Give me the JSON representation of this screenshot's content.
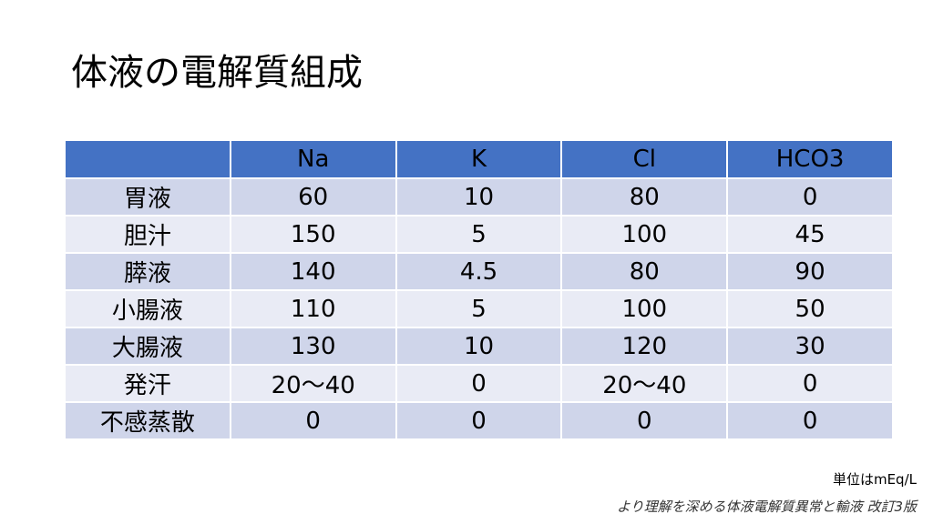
{
  "title": "体液の電解質組成",
  "table": {
    "headers": [
      "",
      "Na",
      "K",
      "Cl",
      "HCO3"
    ],
    "rows": [
      [
        "胃液",
        "60",
        "10",
        "80",
        "0"
      ],
      [
        "胆汁",
        "150",
        "5",
        "100",
        "45"
      ],
      [
        "膵液",
        "140",
        "4.5",
        "80",
        "90"
      ],
      [
        "小腸液",
        "110",
        "5",
        "100",
        "50"
      ],
      [
        "大腸液",
        "130",
        "10",
        "120",
        "30"
      ],
      [
        "発汗",
        "20～40",
        "0",
        "20～40",
        "0"
      ],
      [
        "不感蒸散",
        "0",
        "0",
        "0",
        "0"
      ]
    ]
  },
  "unit_note": "単位はmEq/L",
  "source": "より理解を深める体液電解質異常と輸液 改訂3版",
  "colors": {
    "header": "#4472C4",
    "row_odd": "#CFD5EA",
    "row_even": "#E9EBF5"
  }
}
